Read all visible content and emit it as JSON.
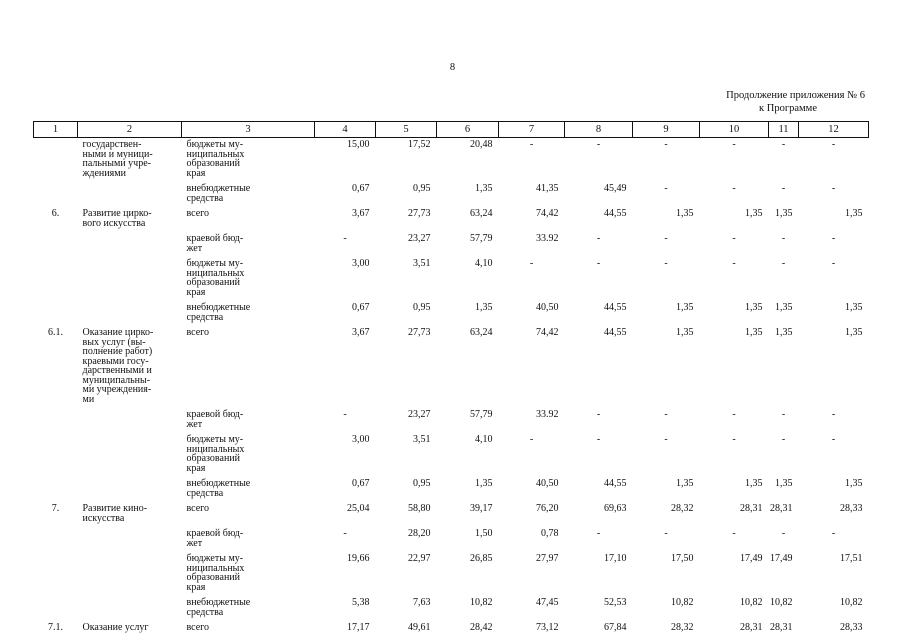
{
  "page_number": "8",
  "appendix_line1": "Продолжение приложения № 6",
  "appendix_line2": "к Программе",
  "columns": [
    "1",
    "2",
    "3",
    "4",
    "5",
    "6",
    "7",
    "8",
    "9",
    "10",
    "11",
    "12"
  ],
  "rows": [
    {
      "no": "",
      "name": "государствен-\nными и муници-\nпальными учре-\nждениями",
      "source": "бюджеты му-\nниципальных\nобразований\nкрая",
      "values": [
        "15,00",
        "17,52",
        "20,48",
        "-",
        "-",
        "-",
        "-",
        "-",
        "-"
      ]
    },
    {
      "no": "",
      "name": "",
      "source": "внебюджетные\nсредства",
      "values": [
        "0,67",
        "0,95",
        "1,35",
        "41,35",
        "45,49",
        "-",
        "-",
        "-",
        "-"
      ]
    },
    {
      "no": "6.",
      "name": "Развитие цирко-\nвого искусства",
      "source": "всего",
      "values": [
        "3,67",
        "27,73",
        "63,24",
        "74,42",
        "44,55",
        "1,35",
        "1,35",
        "1,35",
        "1,35"
      ]
    },
    {
      "no": "",
      "name": "",
      "source": "краевой бюд-\nжет",
      "values": [
        "-",
        "23,27",
        "57,79",
        "33.92",
        "-",
        "-",
        "-",
        "-",
        "-"
      ]
    },
    {
      "no": "",
      "name": "",
      "source": "бюджеты му-\nниципальных\nобразований\nкрая",
      "values": [
        "3,00",
        "3,51",
        "4,10",
        "-",
        "-",
        "-",
        "-",
        "-",
        "-"
      ]
    },
    {
      "no": "",
      "name": "",
      "source": "внебюджетные\nсредства",
      "values": [
        "0,67",
        "0,95",
        "1,35",
        "40,50",
        "44,55",
        "1,35",
        "1,35",
        "1,35",
        "1,35"
      ]
    },
    {
      "no": "6.1.",
      "name": "Оказание цирко-\nвых услуг (вы-\nполнение работ)\nкраевыми госу-\nдарственными и\nмуниципальны-\nми учреждения-\nми",
      "source": "всего",
      "values": [
        "3,67",
        "27,73",
        "63,24",
        "74,42",
        "44,55",
        "1,35",
        "1,35",
        "1,35",
        "1,35"
      ]
    },
    {
      "no": "",
      "name": "",
      "source": "краевой бюд-\nжет",
      "values": [
        "-",
        "23,27",
        "57,79",
        "33.92",
        "-",
        "-",
        "-",
        "-",
        "-"
      ]
    },
    {
      "no": "",
      "name": "",
      "source": "бюджеты му-\nниципальных\nобразований\nкрая",
      "values": [
        "3,00",
        "3,51",
        "4,10",
        "-",
        "-",
        "-",
        "-",
        "-",
        "-"
      ]
    },
    {
      "no": "",
      "name": "",
      "source": "внебюджетные\nсредства",
      "values": [
        "0,67",
        "0,95",
        "1,35",
        "40,50",
        "44,55",
        "1,35",
        "1,35",
        "1,35",
        "1,35"
      ]
    },
    {
      "no": "7.",
      "name": "Развитие кино-\nискусства",
      "source": "всего",
      "values": [
        "25,04",
        "58,80",
        "39,17",
        "76,20",
        "69,63",
        "28,32",
        "28,31",
        "28,31",
        "28,33"
      ]
    },
    {
      "no": "",
      "name": "",
      "source": "краевой бюд-\nжет",
      "values": [
        "-",
        "28,20",
        "1,50",
        "0,78",
        "-",
        "-",
        "-",
        "-",
        "-"
      ]
    },
    {
      "no": "",
      "name": "",
      "source": "бюджеты му-\nниципальных\nобразований\nкрая",
      "values": [
        "19,66",
        "22,97",
        "26,85",
        "27,97",
        "17,10",
        "17,50",
        "17,49",
        "17,49",
        "17,51"
      ]
    },
    {
      "no": "",
      "name": "",
      "source": "внебюджетные\nсредства",
      "values": [
        "5,38",
        "7,63",
        "10,82",
        "47,45",
        "52,53",
        "10,82",
        "10,82",
        "10,82",
        "10,82"
      ]
    },
    {
      "no": "7.1.",
      "name": "Оказание услуг",
      "source": "всего",
      "values": [
        "17,17",
        "49,61",
        "28,42",
        "73,12",
        "67,84",
        "28,32",
        "28,31",
        "28,31",
        "28,33"
      ]
    }
  ]
}
